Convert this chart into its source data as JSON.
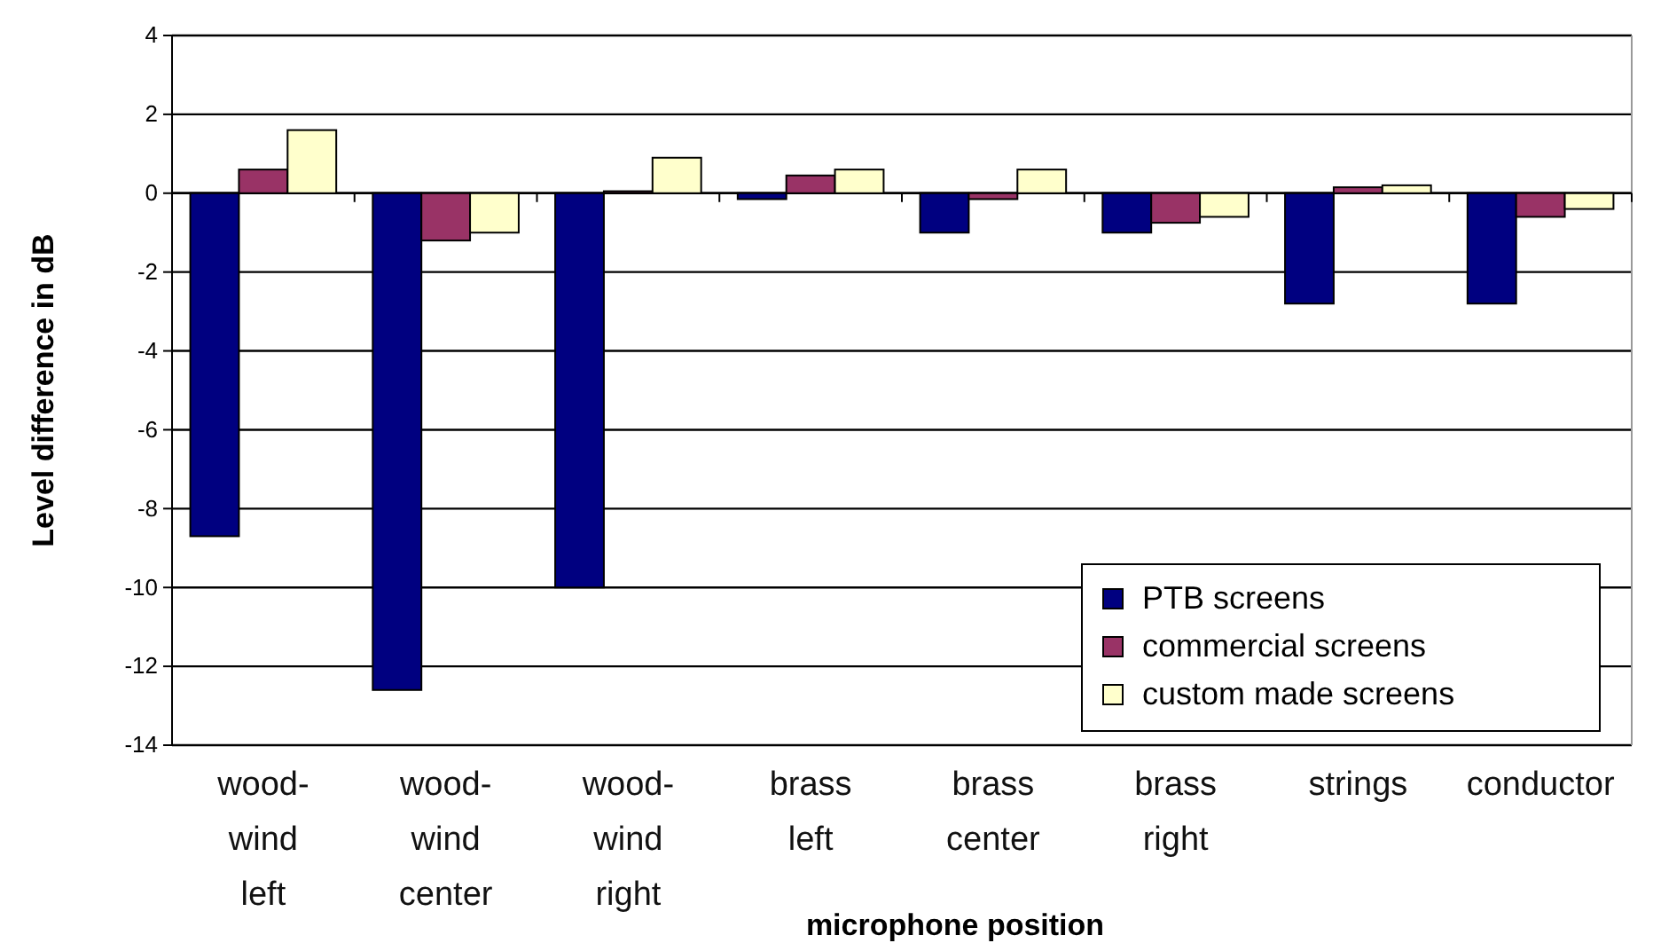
{
  "chart_data": {
    "type": "bar",
    "xlabel": "microphone position",
    "ylabel": "Level difference in dB",
    "categories": [
      "wood-\nwind\nleft",
      "wood-\nwind\ncenter",
      "wood-\nwind\nright",
      "brass\nleft",
      "brass\ncenter",
      "brass\nright",
      "strings",
      "conductor"
    ],
    "series": [
      {
        "name": "PTB screens",
        "color": "#000080",
        "values": [
          -8.7,
          -12.6,
          -10.0,
          -0.15,
          -1.0,
          -1.0,
          -2.8,
          -2.8
        ]
      },
      {
        "name": "commercial screens",
        "color": "#993366",
        "values": [
          0.6,
          -1.2,
          0.05,
          0.45,
          -0.15,
          -0.75,
          0.15,
          -0.6
        ]
      },
      {
        "name": "custom made screens",
        "color": "#ffffcc",
        "values": [
          1.6,
          -1.0,
          0.9,
          0.6,
          0.6,
          -0.6,
          0.2,
          -0.4
        ]
      }
    ],
    "ylim": [
      -14,
      4
    ],
    "yticks": [
      -14,
      -12,
      -10,
      -8,
      -6,
      -4,
      -2,
      0,
      2,
      4
    ],
    "grid": "y",
    "legend": "bottom right"
  }
}
